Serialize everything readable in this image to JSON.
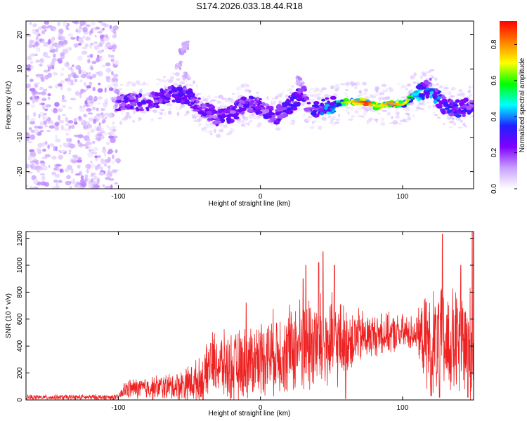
{
  "title": "S174.2026.033.18.44.R18",
  "chart_data": [
    {
      "type": "heatmap",
      "name": "spectrogram",
      "xlabel": "Height of straight line (km)",
      "ylabel": "Frequency (Hz)",
      "xlim": [
        -165,
        150
      ],
      "ylim": [
        -25,
        24
      ],
      "xticks": [
        -100,
        0,
        100
      ],
      "yticks": [
        -20,
        -10,
        0,
        10,
        20
      ],
      "colorbar": {
        "label": "Normalized spectral amplitude",
        "range": [
          0,
          0.93
        ],
        "ticks": [
          0.0,
          0.2,
          0.4,
          0.6,
          0.8
        ],
        "colors": [
          "#ffffff",
          "#c8a0ff",
          "#8000ff",
          "#2020ff",
          "#00ffff",
          "#00ff00",
          "#ffff00",
          "#ff8000",
          "#ff0000"
        ]
      },
      "noise_region_x": [
        -165,
        -100
      ],
      "ridge": [
        {
          "x": -100,
          "f": 0.0,
          "a": 0.3
        },
        {
          "x": -90,
          "f": 0.5,
          "a": 0.3
        },
        {
          "x": -80,
          "f": 0.0,
          "a": 0.28
        },
        {
          "x": -70,
          "f": 1.5,
          "a": 0.3
        },
        {
          "x": -60,
          "f": 3.0,
          "a": 0.32
        },
        {
          "x": -50,
          "f": 2.0,
          "a": 0.3
        },
        {
          "x": -40,
          "f": -2.0,
          "a": 0.28
        },
        {
          "x": -30,
          "f": -4.0,
          "a": 0.3
        },
        {
          "x": -20,
          "f": -3.0,
          "a": 0.3
        },
        {
          "x": -10,
          "f": 0.0,
          "a": 0.32
        },
        {
          "x": 0,
          "f": -1.0,
          "a": 0.3
        },
        {
          "x": 10,
          "f": -4.0,
          "a": 0.3
        },
        {
          "x": 20,
          "f": -1.0,
          "a": 0.32
        },
        {
          "x": 30,
          "f": 3.0,
          "a": 0.3
        },
        {
          "x": 35,
          "f": -2.0,
          "a": 0.3
        },
        {
          "x": 45,
          "f": -1.0,
          "a": 0.4
        },
        {
          "x": 55,
          "f": 0.0,
          "a": 0.55
        },
        {
          "x": 65,
          "f": 0.5,
          "a": 0.75
        },
        {
          "x": 75,
          "f": 0.3,
          "a": 0.9
        },
        {
          "x": 82,
          "f": -1.0,
          "a": 0.65
        },
        {
          "x": 90,
          "f": 0.0,
          "a": 0.8
        },
        {
          "x": 100,
          "f": -0.5,
          "a": 0.75
        },
        {
          "x": 110,
          "f": 3.0,
          "a": 0.5
        },
        {
          "x": 120,
          "f": 4.0,
          "a": 0.45
        },
        {
          "x": 130,
          "f": -1.0,
          "a": 0.35
        },
        {
          "x": 140,
          "f": -1.5,
          "a": 0.35
        },
        {
          "x": 150,
          "f": -1.0,
          "a": 0.3
        }
      ],
      "features": [
        {
          "x": -55,
          "f": 15.0,
          "a": 0.12
        },
        {
          "x": -53,
          "f": 17.0,
          "a": 0.1
        },
        {
          "x": -58,
          "f": 11.0,
          "a": 0.1
        },
        {
          "x": -52,
          "f": 8.0,
          "a": 0.1
        },
        {
          "x": 28,
          "f": 6.5,
          "a": 0.12
        },
        {
          "x": 118,
          "f": 6.0,
          "a": 0.18
        }
      ]
    },
    {
      "type": "line",
      "name": "snr",
      "xlabel": "Height of straight line (km)",
      "ylabel": "SNR (10 * v/v)",
      "xlim": [
        -165,
        150
      ],
      "ylim": [
        0,
        1250
      ],
      "xticks": [
        -100,
        0,
        100
      ],
      "yticks": [
        0,
        200,
        400,
        600,
        800,
        1000,
        1200
      ],
      "color": "#ee2222",
      "envelope": [
        {
          "x": -165,
          "base": 20,
          "amp": 20
        },
        {
          "x": -100,
          "base": 20,
          "amp": 25
        },
        {
          "x": -95,
          "base": 80,
          "amp": 80
        },
        {
          "x": -60,
          "base": 100,
          "amp": 120
        },
        {
          "x": -40,
          "base": 150,
          "amp": 200
        },
        {
          "x": -35,
          "base": 280,
          "amp": 260
        },
        {
          "x": -20,
          "base": 230,
          "amp": 300
        },
        {
          "x": 0,
          "base": 320,
          "amp": 320
        },
        {
          "x": 20,
          "base": 380,
          "amp": 380
        },
        {
          "x": 35,
          "base": 420,
          "amp": 450
        },
        {
          "x": 50,
          "base": 400,
          "amp": 420
        },
        {
          "x": 60,
          "base": 450,
          "amp": 300
        },
        {
          "x": 80,
          "base": 480,
          "amp": 180
        },
        {
          "x": 110,
          "base": 500,
          "amp": 150
        },
        {
          "x": 118,
          "base": 420,
          "amp": 450
        },
        {
          "x": 150,
          "base": 400,
          "amp": 500
        }
      ],
      "peaks": [
        {
          "x": 44,
          "y": 1100
        },
        {
          "x": 41,
          "y": 1020
        },
        {
          "x": 32,
          "y": 1000
        },
        {
          "x": 52,
          "y": 1000
        },
        {
          "x": 128,
          "y": 1230
        },
        {
          "x": 141,
          "y": 1000
        },
        {
          "x": 149,
          "y": 1250
        },
        {
          "x": 60,
          "y": 970
        },
        {
          "x": -10,
          "y": 720
        },
        {
          "x": 30,
          "y": 900
        },
        {
          "x": 85,
          "y": 640
        },
        {
          "x": 110,
          "y": 610
        },
        {
          "x": -35,
          "y": 420
        }
      ],
      "troughs": [
        {
          "x": 60,
          "y": 10
        },
        {
          "x": 120,
          "y": 30
        },
        {
          "x": 126,
          "y": 20
        },
        {
          "x": 146,
          "y": 20
        },
        {
          "x": 18,
          "y": 80
        }
      ]
    }
  ]
}
